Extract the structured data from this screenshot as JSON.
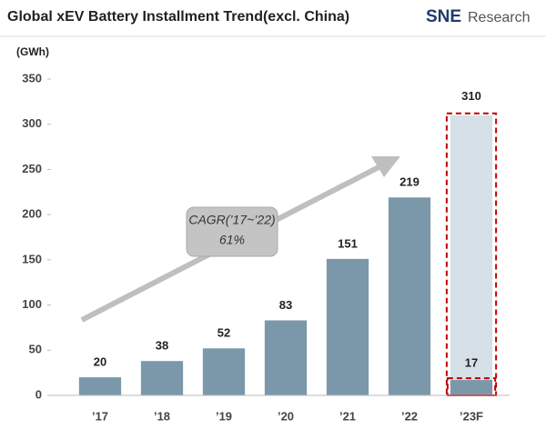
{
  "chart_data": {
    "type": "bar",
    "title": "Global xEV Battery Installment Trend(excl. China)",
    "brand": "SNE",
    "brand_suffix": "Research",
    "unit_label": "(GWh)",
    "categories": [
      "’17",
      "’18",
      "’19",
      "’20",
      "’21",
      "’22",
      "’23F"
    ],
    "series": [
      {
        "values": [
          20,
          38,
          52,
          83,
          151,
          219,
          17
        ],
        "color": "#7b98ab",
        "label_colors": [
          "#222222",
          "#222222",
          "#222222",
          "#222222",
          "#222222",
          "#222222",
          "#c00000"
        ]
      },
      {
        "values": [
          null,
          null,
          null,
          null,
          null,
          null,
          310
        ],
        "color": "#d6e0e8",
        "label_colors": [
          null,
          null,
          null,
          null,
          null,
          null,
          "#c00000"
        ],
        "outline": "#c00000"
      }
    ],
    "ylim": [
      0,
      350
    ],
    "yticks": [
      0,
      50,
      100,
      150,
      200,
      250,
      300,
      350
    ],
    "grid": false,
    "annotation": [
      "CAGR(’17~’22)",
      "61%"
    ]
  }
}
